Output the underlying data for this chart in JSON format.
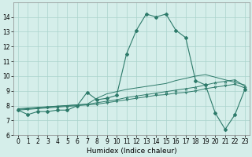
{
  "xlabel": "Humidex (Indice chaleur)",
  "line_color": "#2d7a6a",
  "bg_color": "#d5eeea",
  "grid_color": "#aad4cc",
  "ylim": [
    6,
    15
  ],
  "xlim": [
    -0.5,
    23.5
  ],
  "yticks": [
    6,
    7,
    8,
    9,
    10,
    11,
    12,
    13,
    14
  ],
  "xticks": [
    0,
    1,
    2,
    3,
    4,
    5,
    6,
    7,
    8,
    9,
    10,
    11,
    12,
    13,
    14,
    15,
    16,
    17,
    18,
    19,
    20,
    21,
    22,
    23
  ],
  "tick_fontsize": 5.5,
  "label_fontsize": 6.5,
  "main_x": [
    0,
    1,
    2,
    3,
    4,
    5,
    6,
    7,
    8,
    9,
    10,
    11,
    12,
    13,
    14,
    15,
    16,
    17,
    18,
    19,
    20,
    21,
    22,
    23
  ],
  "main_y": [
    7.7,
    7.4,
    7.6,
    7.6,
    7.7,
    7.7,
    8.0,
    8.9,
    8.4,
    8.5,
    8.7,
    11.5,
    13.1,
    14.2,
    14.0,
    14.2,
    13.1,
    12.6,
    9.7,
    9.4,
    7.5,
    6.4,
    7.4,
    9.1
  ],
  "line2_x": [
    0,
    1,
    2,
    3,
    4,
    5,
    6,
    7,
    8,
    9,
    10,
    11,
    12,
    13,
    14,
    15,
    16,
    17,
    18,
    19,
    20,
    21,
    22,
    23
  ],
  "line2_y": [
    7.7,
    7.75,
    7.8,
    7.85,
    7.9,
    7.95,
    8.0,
    8.05,
    8.1,
    8.2,
    8.3,
    8.4,
    8.5,
    8.6,
    8.7,
    8.75,
    8.85,
    8.9,
    9.0,
    9.15,
    9.25,
    9.35,
    9.45,
    9.2
  ],
  "line3_x": [
    0,
    1,
    2,
    3,
    4,
    5,
    6,
    7,
    8,
    9,
    10,
    11,
    12,
    13,
    14,
    15,
    16,
    17,
    18,
    19,
    20,
    21,
    22,
    23
  ],
  "line3_y": [
    7.75,
    7.8,
    7.85,
    7.9,
    7.95,
    8.0,
    8.05,
    8.1,
    8.2,
    8.3,
    8.4,
    8.55,
    8.65,
    8.75,
    8.85,
    8.95,
    9.05,
    9.15,
    9.25,
    9.4,
    9.55,
    9.65,
    9.75,
    9.3
  ],
  "line4_x": [
    0,
    7,
    8,
    9,
    10,
    11,
    12,
    13,
    14,
    15,
    16,
    17,
    18,
    19,
    23
  ],
  "line4_y": [
    7.8,
    8.1,
    8.5,
    8.8,
    8.95,
    9.1,
    9.2,
    9.3,
    9.4,
    9.5,
    9.7,
    9.85,
    10.0,
    10.1,
    9.4
  ]
}
